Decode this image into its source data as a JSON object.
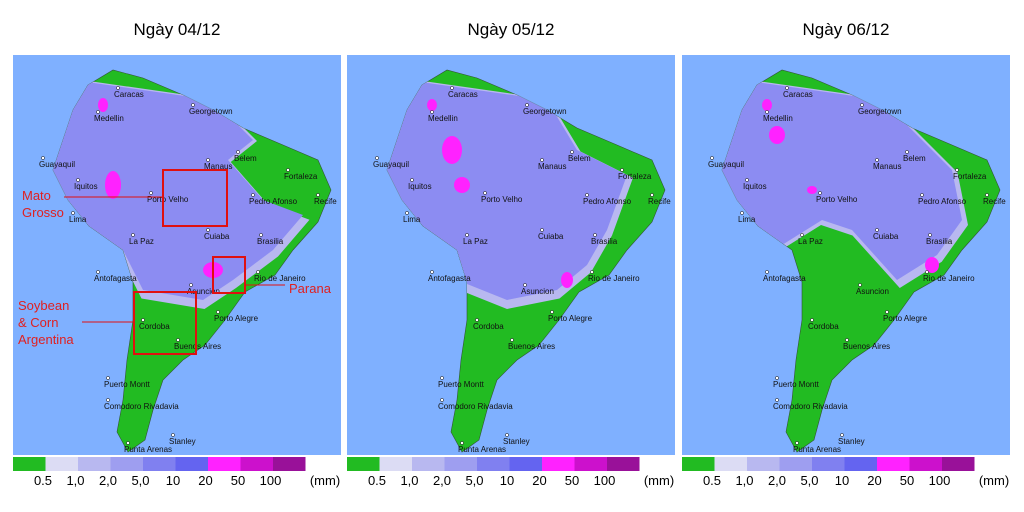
{
  "panels": [
    {
      "title": "Ngày 04/12"
    },
    {
      "title": "Ngày 05/12"
    },
    {
      "title": "Ngày 06/12"
    }
  ],
  "cities": [
    "Caracas",
    "Georgetown",
    "Medellin",
    "Guayaquil",
    "Manaus",
    "Belem",
    "Fortaleza",
    "Iquitos",
    "Porto Velho",
    "Pedro Afonso",
    "Recife",
    "Lima",
    "La Paz",
    "Cuiaba",
    "Brasilia",
    "Antofagasta",
    "Rio de Janeiro",
    "Asuncion",
    "Cordoba",
    "Porto Alegre",
    "Buenos Aires",
    "Puerto Montt",
    "Comodoro Rivadavia",
    "Stanley",
    "Punta Arenas"
  ],
  "annotations": [
    {
      "lines": [
        "Mato",
        "Grosso"
      ]
    },
    {
      "lines": [
        "Soybean",
        "& Corn",
        "Argentina"
      ]
    },
    {
      "lines": [
        "Parana"
      ]
    }
  ],
  "legend": {
    "labels": [
      "0.5",
      "1,0",
      "2,0",
      "5,0",
      "10",
      "20",
      "50",
      "100"
    ],
    "unit": "(mm)",
    "colors": [
      "#22bb22",
      "#dcdcf4",
      "#b8b8f0",
      "#9e9ef0",
      "#8080f0",
      "#6464f0",
      "#ff22ff",
      "#cc11cc",
      "#991199"
    ]
  }
}
